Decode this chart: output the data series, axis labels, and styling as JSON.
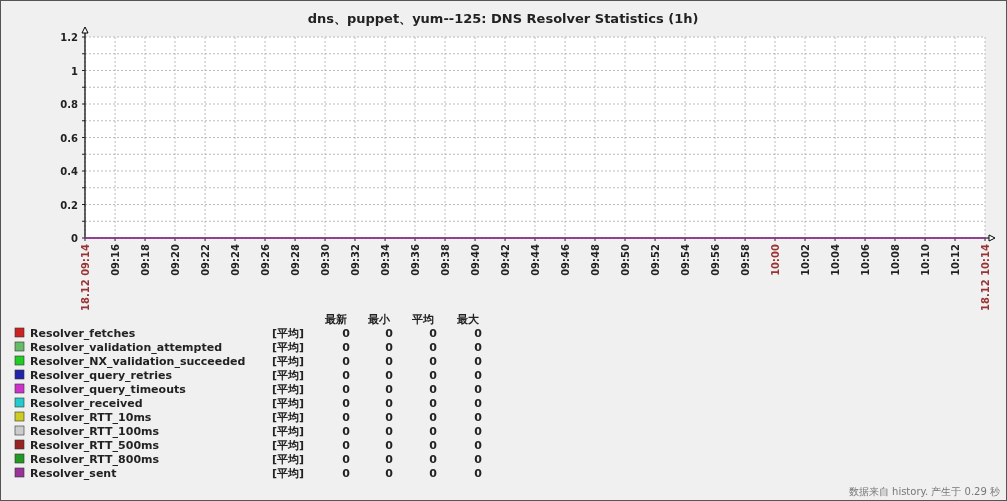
{
  "chart_data": {
    "type": "line",
    "title": "dns、puppet、yum--125: DNS Resolver Statistics (1h)",
    "x": [
      9.2333,
      10.2333
    ],
    "xlim": [
      9.2333,
      10.2333
    ],
    "xticks": [
      {
        "value": 9.2333,
        "label": "18.12 09:14"
      },
      {
        "value": 9.2667,
        "label": "09:16"
      },
      {
        "value": 9.3,
        "label": "09:18"
      },
      {
        "value": 9.3333,
        "label": "09:20"
      },
      {
        "value": 9.3667,
        "label": "09:22"
      },
      {
        "value": 9.4,
        "label": "09:24"
      },
      {
        "value": 9.4333,
        "label": "09:26"
      },
      {
        "value": 9.4667,
        "label": "09:28"
      },
      {
        "value": 9.5,
        "label": "09:30"
      },
      {
        "value": 9.5333,
        "label": "09:32"
      },
      {
        "value": 9.5667,
        "label": "09:34"
      },
      {
        "value": 9.6,
        "label": "09:36"
      },
      {
        "value": 9.6333,
        "label": "09:38"
      },
      {
        "value": 9.6667,
        "label": "09:40"
      },
      {
        "value": 9.7,
        "label": "09:42"
      },
      {
        "value": 9.7333,
        "label": "09:44"
      },
      {
        "value": 9.7667,
        "label": "09:46"
      },
      {
        "value": 9.8,
        "label": "09:48"
      },
      {
        "value": 9.8333,
        "label": "09:50"
      },
      {
        "value": 9.8667,
        "label": "09:52"
      },
      {
        "value": 9.9,
        "label": "09:54"
      },
      {
        "value": 9.9333,
        "label": "09:56"
      },
      {
        "value": 9.9667,
        "label": "09:58"
      },
      {
        "value": 10,
        "label": "10:00"
      },
      {
        "value": 10.0333,
        "label": "10:02"
      },
      {
        "value": 10.0667,
        "label": "10:04"
      },
      {
        "value": 10.1,
        "label": "10:06"
      },
      {
        "value": 10.1333,
        "label": "10:08"
      },
      {
        "value": 10.1667,
        "label": "10:10"
      },
      {
        "value": 10.2,
        "label": "10:12"
      },
      {
        "value": 10.2333,
        "label": "18.12 10:14"
      }
    ],
    "ylim": [
      0,
      1.2
    ],
    "yticks": [
      0,
      {
        "value": 0.1,
        "label": null
      },
      0.2,
      {
        "value": 0.3,
        "label": null
      },
      0.4,
      {
        "value": 0.5,
        "label": null
      },
      0.6,
      {
        "value": 0.7,
        "label": null
      },
      0.8,
      {
        "value": 0.9,
        "label": null
      },
      1,
      {
        "value": 1.1,
        "label": null
      },
      1.2
    ],
    "grid": true,
    "legend": "bottom left",
    "line_style": "solid",
    "series": [
      {
        "name": "Resolver_fetches",
        "color": "#cc2222",
        "values": [
          null,
          null
        ]
      },
      {
        "name": "Resolver_validation_attempted",
        "color": "#66bb66",
        "values": [
          null,
          null
        ]
      },
      {
        "name": "Resolver_NX_validation_succeeded",
        "color": "#22cc22",
        "values": [
          null,
          null
        ]
      },
      {
        "name": "Resolver_query_retries",
        "color": "#2222aa",
        "values": [
          null,
          null
        ]
      },
      {
        "name": "Resolver_query_timeouts",
        "color": "#cc33cc",
        "values": [
          null,
          null
        ]
      },
      {
        "name": "Resolver_received",
        "color": "#22cccc",
        "values": [
          null,
          null
        ]
      },
      {
        "name": "Resolver_RTT_10ms",
        "color": "#cccc22",
        "values": [
          null,
          null
        ]
      },
      {
        "name": "Resolver_RTT_100ms",
        "color": "#cccccc",
        "values": [
          null,
          null
        ]
      },
      {
        "name": "Resolver_RTT_500ms",
        "color": "#992222",
        "values": [
          null,
          null
        ]
      },
      {
        "name": "Resolver_RTT_800ms",
        "color": "#229922",
        "values": [
          null,
          null
        ]
      },
      {
        "name": "Resolver_sent",
        "color": "#993399",
        "values": [
          0,
          0
        ]
      }
    ],
    "annotations": [
      "最新",
      "最小",
      "平均",
      "最大",
      "[平均]",
      "0",
      "0",
      "0",
      "0",
      "[平均]",
      "0",
      "0",
      "0",
      "0",
      "[平均]",
      "0",
      "0",
      "0",
      "0",
      "[平均]",
      "0",
      "0",
      "0",
      "0",
      "[平均]",
      "0",
      "0",
      "0",
      "0",
      "[平均]",
      "0",
      "0",
      "0",
      "0",
      "[平均]",
      "0",
      "0",
      "0",
      "0",
      "[平均]",
      "0",
      "0",
      "0",
      "0",
      "[平均]",
      "0",
      "0",
      "0",
      "0",
      "[平均]",
      "0",
      "0",
      "0",
      "0",
      "[平均]",
      "0",
      "0",
      "0",
      "0",
      "数据来自 history. 产生于 0.29 秒"
    ]
  }
}
